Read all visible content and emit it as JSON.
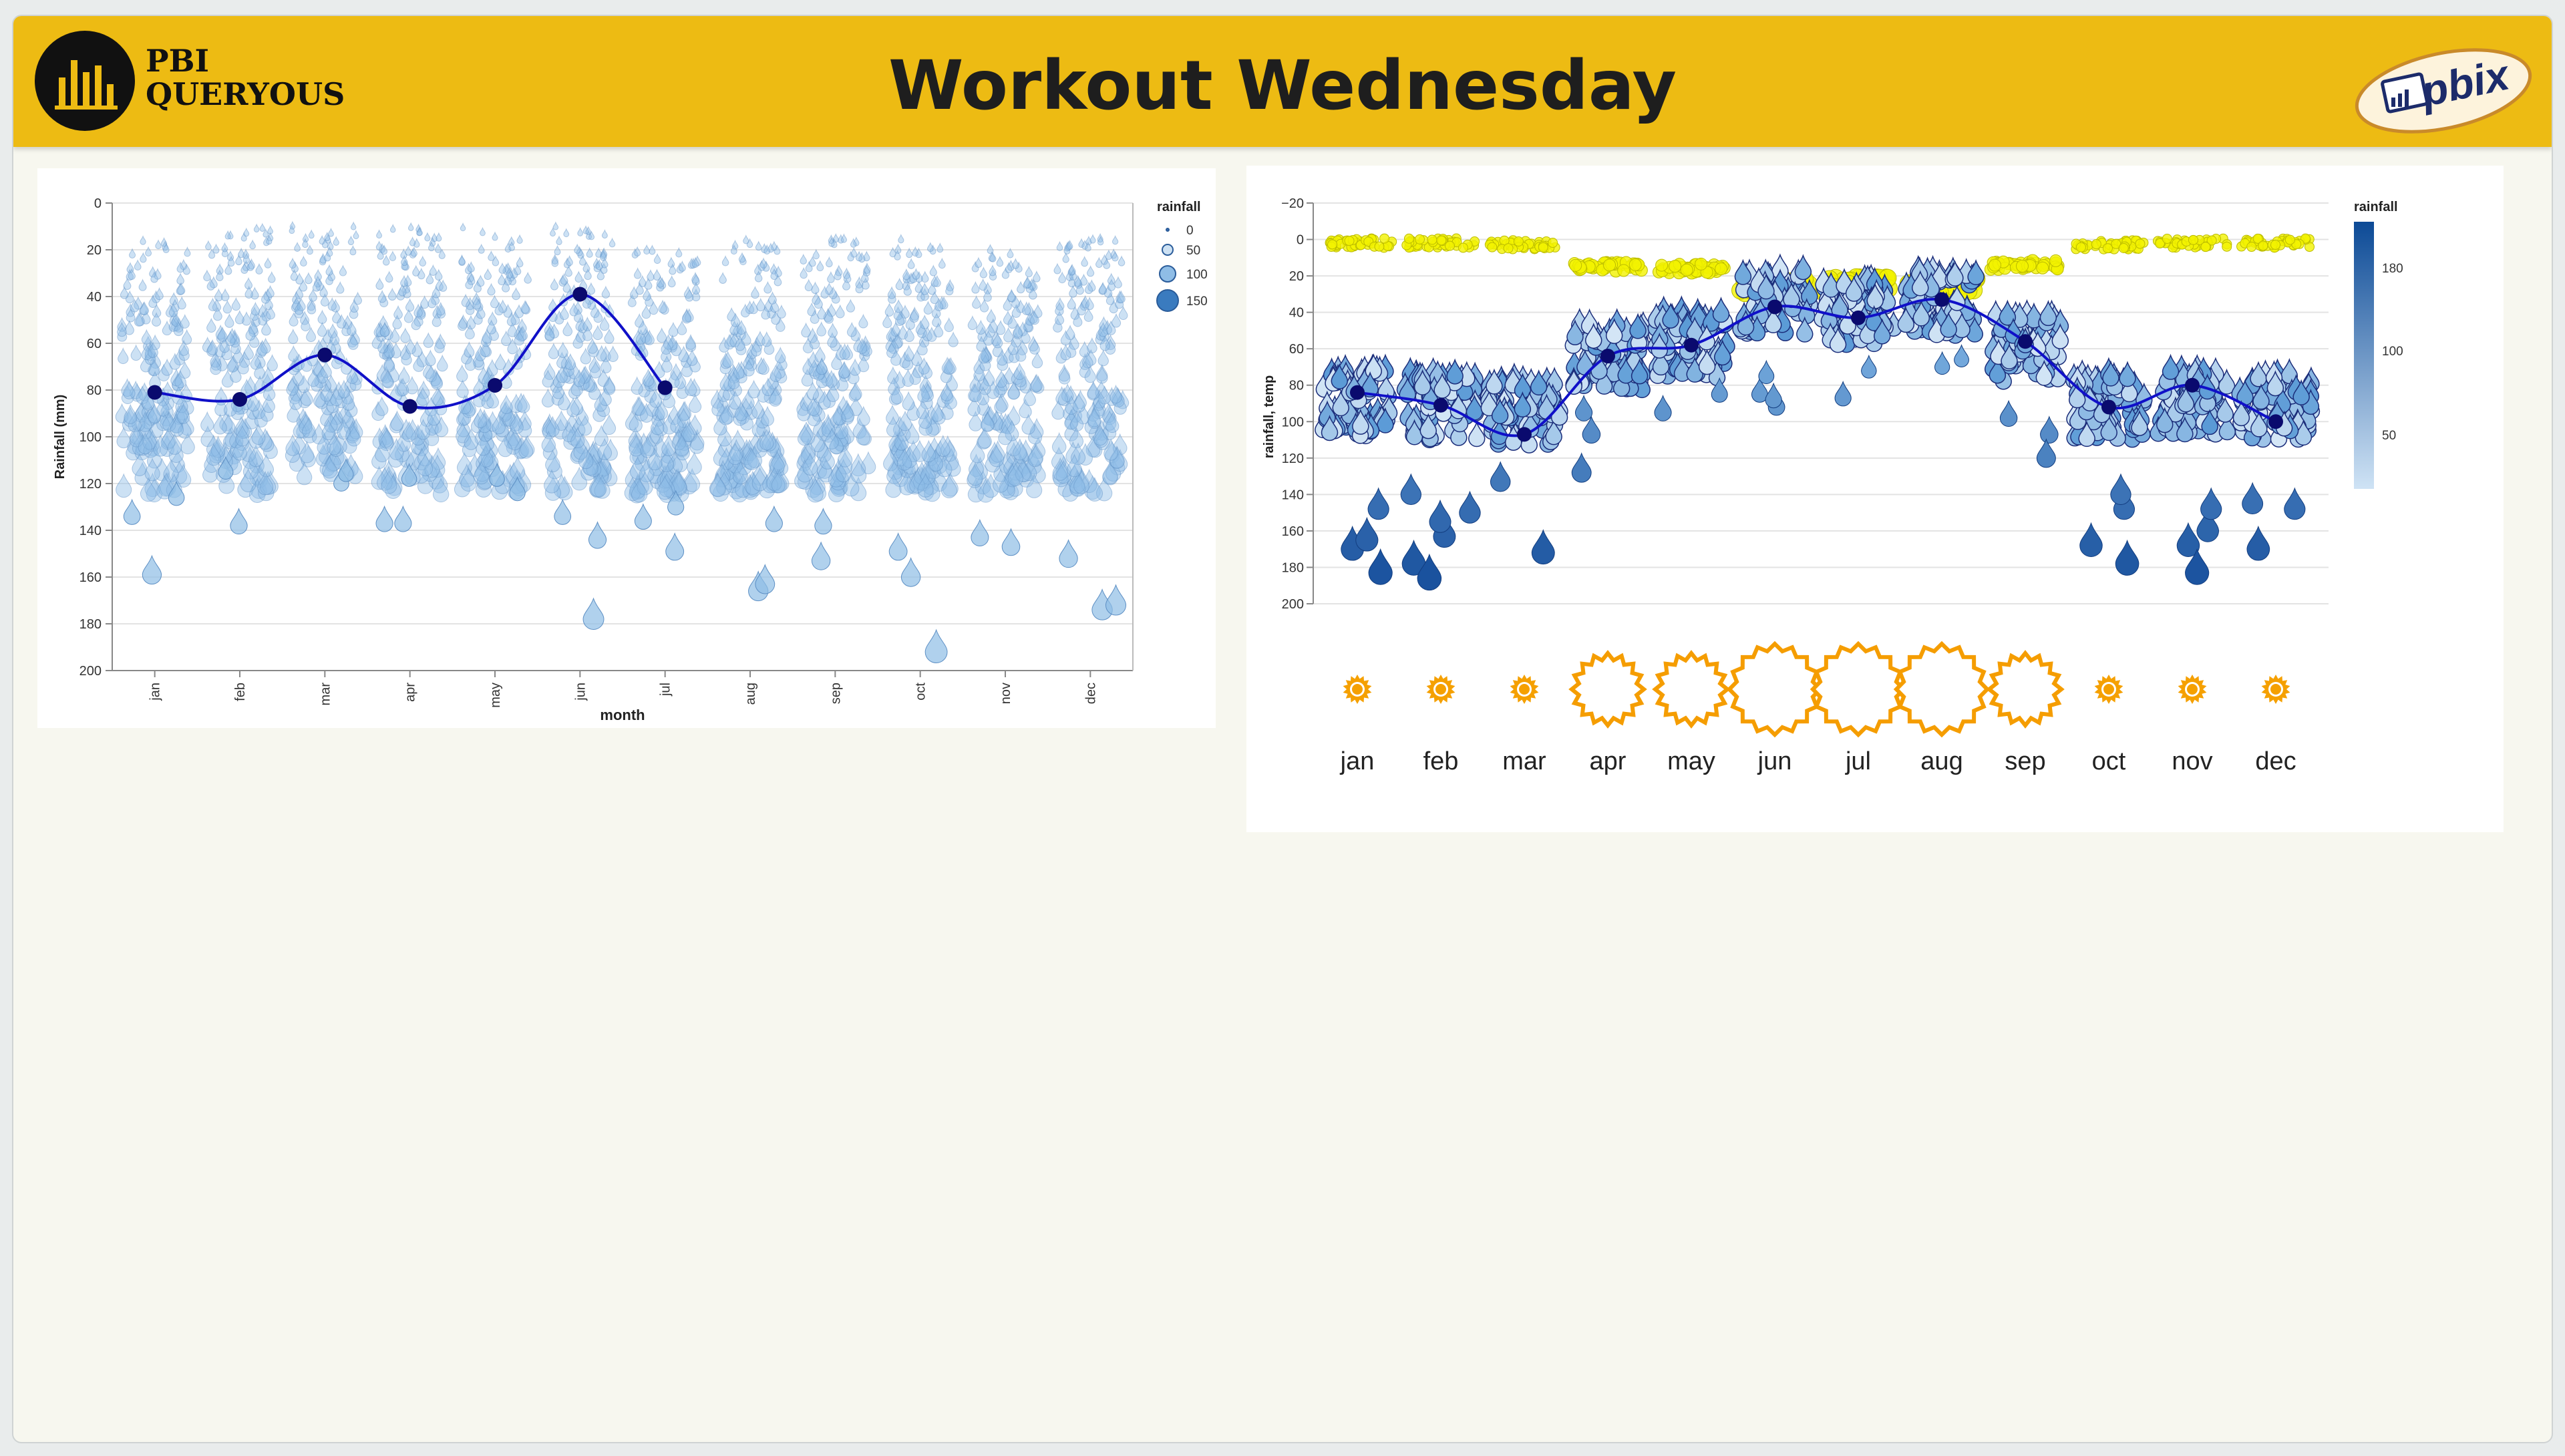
{
  "header": {
    "title": "Workout Wednesday",
    "logo_line1": "PBI",
    "logo_line2": "QUERYOUS",
    "pbix_label": "pbix"
  },
  "colors": {
    "header_bg": "#edbb13",
    "mean_line": "#1010c8",
    "mean_point": "#0a0a6e",
    "drop_light": "#8fbde6",
    "drop_dark": "#1f5fae",
    "sun_small": "#f5a000",
    "sun_outline": "#f59d00",
    "temp_bubble": "#f2f200"
  },
  "chart_data": [
    {
      "type": "scatter",
      "title": "",
      "xlabel": "month",
      "ylabel": "Rainfall (mm)",
      "ylim": [
        0,
        200
      ],
      "y_reversed": true,
      "yticks": [
        0,
        20,
        40,
        60,
        80,
        100,
        120,
        140,
        160,
        180,
        200
      ],
      "categories": [
        "jan",
        "feb",
        "mar",
        "apr",
        "may",
        "jun",
        "jul",
        "aug",
        "sep",
        "oct",
        "nov",
        "dec"
      ],
      "mean_line": {
        "months": [
          "jan",
          "feb",
          "mar",
          "apr",
          "may",
          "jun",
          "jul"
        ],
        "values": [
          81,
          84,
          65,
          87,
          78,
          39,
          79
        ]
      },
      "spread": {
        "min": [
          15,
          10,
          10,
          10,
          10,
          10,
          20,
          15,
          15,
          15,
          20,
          15
        ],
        "max": [
          159,
          138,
          120,
          137,
          124,
          178,
          149,
          166,
          153,
          192,
          147,
          174
        ],
        "extremes": [
          [
            159,
            134,
            126
          ],
          [
            138,
            115
          ],
          [
            120,
            116
          ],
          [
            137,
            118,
            137
          ],
          [
            124,
            118
          ],
          [
            178,
            144,
            134
          ],
          [
            149,
            136,
            130
          ],
          [
            166,
            163,
            137
          ],
          [
            153,
            138
          ],
          [
            192,
            160,
            149
          ],
          [
            147,
            143
          ],
          [
            174,
            172,
            152
          ]
        ]
      },
      "legend": {
        "title": "rainfall",
        "entries": [
          "0",
          "50",
          "100",
          "150"
        ],
        "position": "top-right"
      }
    },
    {
      "type": "scatter",
      "title": "",
      "ylabel": "rainfall, temp",
      "ylim": [
        -20,
        200
      ],
      "y_reversed": true,
      "yticks": [
        -20,
        0,
        20,
        40,
        60,
        80,
        100,
        120,
        140,
        160,
        180,
        200
      ],
      "categories": [
        "jan",
        "feb",
        "mar",
        "apr",
        "may",
        "jun",
        "jul",
        "aug",
        "sep",
        "oct",
        "nov",
        "dec"
      ],
      "mean_line": {
        "values": [
          84,
          91,
          107,
          64,
          58,
          37,
          43,
          33,
          56,
          92,
          80,
          100
        ]
      },
      "temp_band": [
        2,
        2,
        3,
        15,
        16,
        25,
        25,
        25,
        14,
        3,
        2,
        2
      ],
      "rain_cluster": {
        "center": [
          90,
          92,
          95,
          65,
          58,
          35,
          40,
          35,
          60,
          92,
          90,
          92
        ]
      },
      "rain_outliers": [
        [
          170,
          165,
          183,
          148
        ],
        [
          178,
          163,
          155,
          140,
          186,
          150
        ],
        [
          133,
          172
        ],
        [
          107,
          95,
          128
        ],
        [
          95,
          85
        ],
        [
          85,
          92,
          75,
          88
        ],
        [
          87,
          72
        ],
        [
          70,
          66
        ],
        [
          107,
          120,
          98
        ],
        [
          178,
          168,
          148,
          140
        ],
        [
          168,
          183,
          160,
          148
        ],
        [
          148,
          170,
          145
        ]
      ],
      "sun_size": [
        1,
        1,
        1,
        3,
        3,
        4,
        4,
        4,
        3,
        1,
        1,
        1
      ],
      "legend": {
        "title": "rainfall",
        "ticks": [
          "180",
          "100",
          "50"
        ],
        "position": "right"
      }
    }
  ]
}
